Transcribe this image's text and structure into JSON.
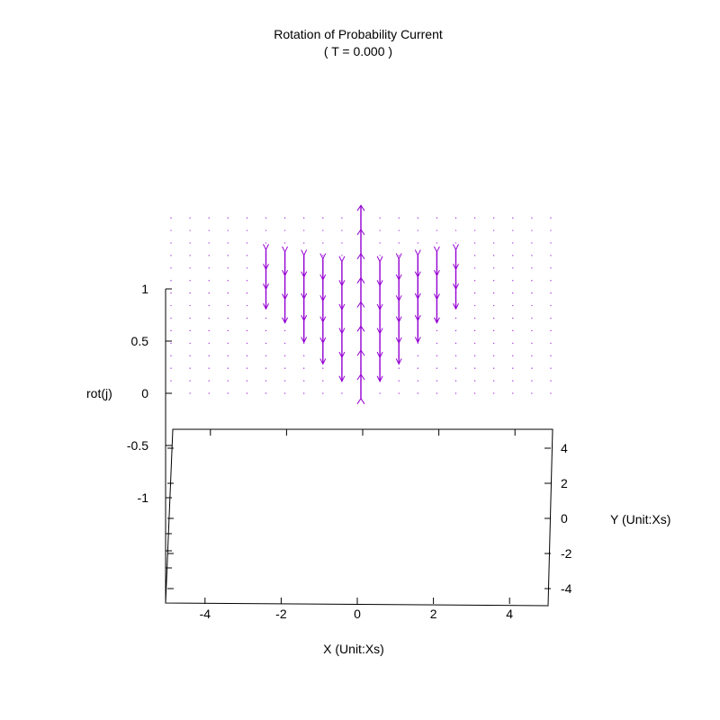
{
  "chart_data": {
    "type": "vector-field-3d",
    "title": "Rotation of Probability Current",
    "subtitle": "( T = 0.000 )",
    "xlabel": "X (Unit:Xs)",
    "ylabel": "Y (Unit:Xs)",
    "zlabel": "rot(j)",
    "x_ticks": [
      "-4",
      "-2",
      "0",
      "2",
      "4"
    ],
    "y_ticks": [
      "4",
      "2",
      "0",
      "-2",
      "-4"
    ],
    "z_ticks": [
      "1",
      "0.5",
      "0",
      "-0.5",
      "-1"
    ],
    "xlim": [
      -5,
      5
    ],
    "ylim": [
      -5,
      5
    ],
    "zlim": [
      -1.5,
      1
    ],
    "grid": false,
    "colors": {
      "vectors": "#9400d3",
      "axes": "#000000",
      "text": "#000000"
    },
    "field": {
      "x_range": [
        -5,
        5
      ],
      "x_step": 0.5,
      "z_range": [
        0,
        1.7
      ],
      "z_step": 0.12,
      "envelope": {
        "center_x": 0,
        "sigma": 1.3,
        "core_width": 0.45,
        "peak": 1.85
      }
    }
  }
}
